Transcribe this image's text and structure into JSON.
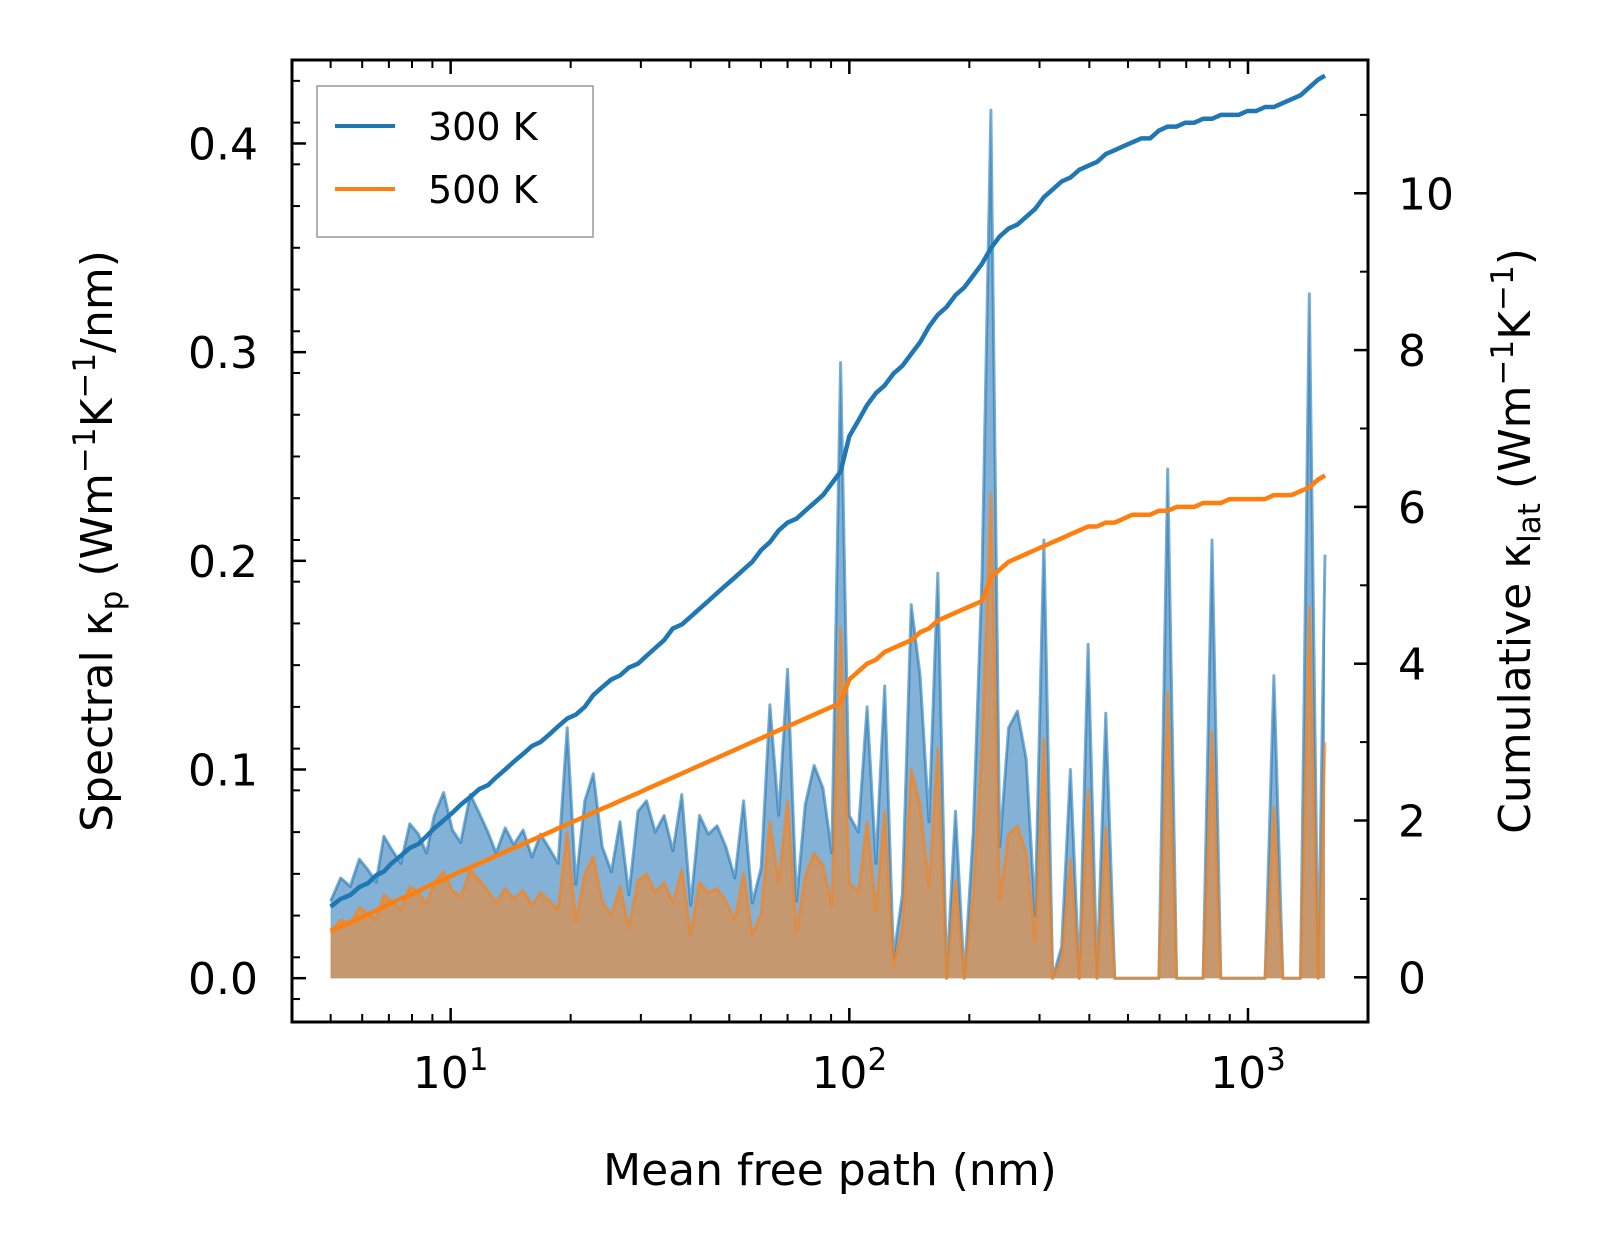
{
  "chart_data": {
    "type": "line",
    "x_scale": "log",
    "xlim": [
      4,
      2000
    ],
    "xlabel": "Mean free path (nm)",
    "x_ticks": [
      {
        "value": 10,
        "base": "10",
        "exp": "1"
      },
      {
        "value": 100,
        "base": "10",
        "exp": "2"
      },
      {
        "value": 1000,
        "base": "10",
        "exp": "3"
      }
    ],
    "y_left": {
      "label_prefix": "Spectral κ",
      "label_sub": "p",
      "label_unit_open": " (Wm",
      "label_sup1": "−1",
      "label_mid": "K",
      "label_sup2": "−1",
      "label_end": "/nm)",
      "ylim": [
        -0.021,
        0.44
      ],
      "ticks": [
        "0.0",
        "0.1",
        "0.2",
        "0.3",
        "0.4"
      ]
    },
    "y_right": {
      "label_prefix": "Cumulative κ",
      "label_sub": "lat",
      "label_unit_open": " (Wm",
      "label_sup1": "−1",
      "label_mid": "K",
      "label_sup2": "−1",
      "label_end": ")",
      "ylim": [
        -0.57,
        11.7
      ],
      "ticks": [
        "0",
        "2",
        "4",
        "6",
        "8",
        "10"
      ]
    },
    "legend": {
      "position": "upper-left",
      "entries": [
        "300 K",
        "500 K"
      ]
    },
    "colors": {
      "300 K": "#1f77b4",
      "500 K": "#ff7f0e",
      "fill_300": "#6fa4cf",
      "fill_500": "#c8976a"
    },
    "spectral_x": [
      5,
      5.3,
      5.6,
      5.9,
      6.2,
      6.5,
      6.8,
      7.1,
      7.5,
      7.9,
      8.3,
      8.7,
      9.1,
      9.6,
      10.1,
      10.6,
      11.2,
      11.8,
      12.4,
      13,
      13.7,
      14.4,
      15.2,
      16,
      16.8,
      17.7,
      18.6,
      19.6,
      20.6,
      21.7,
      22.8,
      24,
      25.3,
      26.6,
      28,
      29.5,
      31,
      32.6,
      34.3,
      36.1,
      38,
      40,
      42.1,
      44.3,
      46.6,
      49,
      51.6,
      54.3,
      57.1,
      60.1,
      63.2,
      66.5,
      70,
      73.7,
      77.5,
      81.6,
      85.9,
      90.4,
      95.1,
      100,
      105.3,
      110.8,
      116.6,
      122.7,
      129.1,
      135.9,
      143,
      150.5,
      158.4,
      166.7,
      175.4,
      184.6,
      194.3,
      204.5,
      215.2,
      226.5,
      238.4,
      250.9,
      264,
      277.8,
      292.4,
      307.7,
      323.8,
      340.8,
      358.6,
      377.4,
      397.2,
      418,
      440,
      463,
      487.3,
      512.8,
      539.7,
      568,
      597.8,
      629.1,
      662.1,
      696.8,
      733.3,
      771.8,
      812.2,
      854.8,
      899.6,
      946.8,
      996.4,
      1048.7,
      1103.7,
      1161.6,
      1222.5,
      1286.6,
      1354.1,
      1425.1,
      1499.8,
      1560
    ],
    "series": [
      {
        "name": "300 K",
        "spectral": [
          0.037,
          0.048,
          0.044,
          0.057,
          0.052,
          0.046,
          0.068,
          0.062,
          0.055,
          0.074,
          0.069,
          0.06,
          0.078,
          0.089,
          0.071,
          0.065,
          0.088,
          0.079,
          0.07,
          0.06,
          0.072,
          0.064,
          0.071,
          0.058,
          0.069,
          0.062,
          0.055,
          0.12,
          0.045,
          0.085,
          0.098,
          0.063,
          0.051,
          0.075,
          0.04,
          0.08,
          0.085,
          0.07,
          0.078,
          0.061,
          0.088,
          0.035,
          0.078,
          0.069,
          0.073,
          0.063,
          0.048,
          0.085,
          0.036,
          0.053,
          0.131,
          0.078,
          0.148,
          0.037,
          0.083,
          0.102,
          0.091,
          0.06,
          0.295,
          0.078,
          0.07,
          0.13,
          0.055,
          0.14,
          0.01,
          0.04,
          0.179,
          0.145,
          0.075,
          0.194,
          0.0,
          0.08,
          0.0,
          0.07,
          0.193,
          0.416,
          0.063,
          0.12,
          0.128,
          0.105,
          0.03,
          0.21,
          0.0,
          0.015,
          0.1,
          0.0,
          0.16,
          0.0,
          0.127,
          0.0,
          0.0,
          0.0,
          0.0,
          0.0,
          0.0,
          0.244,
          0.0,
          0.0,
          0.0,
          0.0,
          0.21,
          0.0,
          0.0,
          0.0,
          0.0,
          0.0,
          0.0,
          0.145,
          0.0,
          0.0,
          0.0,
          0.328,
          0.0,
          0.203
        ],
        "cumulative": [
          0.9,
          1.0,
          1.05,
          1.15,
          1.2,
          1.3,
          1.35,
          1.45,
          1.55,
          1.65,
          1.7,
          1.8,
          1.9,
          2.0,
          2.1,
          2.2,
          2.3,
          2.4,
          2.45,
          2.55,
          2.65,
          2.75,
          2.85,
          2.95,
          3.0,
          3.1,
          3.2,
          3.3,
          3.35,
          3.45,
          3.6,
          3.7,
          3.8,
          3.85,
          3.95,
          4.0,
          4.1,
          4.2,
          4.3,
          4.45,
          4.5,
          4.6,
          4.7,
          4.8,
          4.9,
          5.0,
          5.1,
          5.2,
          5.3,
          5.45,
          5.55,
          5.7,
          5.8,
          5.85,
          5.95,
          6.05,
          6.15,
          6.3,
          6.45,
          6.9,
          7.1,
          7.3,
          7.45,
          7.55,
          7.7,
          7.8,
          7.95,
          8.1,
          8.3,
          8.45,
          8.55,
          8.7,
          8.8,
          8.95,
          9.1,
          9.3,
          9.45,
          9.55,
          9.6,
          9.7,
          9.8,
          9.95,
          10.05,
          10.15,
          10.2,
          10.3,
          10.35,
          10.4,
          10.5,
          10.55,
          10.6,
          10.65,
          10.7,
          10.7,
          10.8,
          10.85,
          10.85,
          10.9,
          10.9,
          10.95,
          10.95,
          11.0,
          11.0,
          11.0,
          11.05,
          11.05,
          11.1,
          11.1,
          11.15,
          11.2,
          11.25,
          11.35,
          11.45,
          11.5
        ]
      },
      {
        "name": "500 K",
        "spectral": [
          0.022,
          0.028,
          0.026,
          0.034,
          0.031,
          0.028,
          0.04,
          0.037,
          0.033,
          0.044,
          0.041,
          0.036,
          0.046,
          0.051,
          0.042,
          0.039,
          0.052,
          0.047,
          0.042,
          0.036,
          0.043,
          0.038,
          0.042,
          0.035,
          0.041,
          0.037,
          0.033,
          0.07,
          0.027,
          0.05,
          0.058,
          0.037,
          0.03,
          0.044,
          0.024,
          0.047,
          0.05,
          0.041,
          0.046,
          0.036,
          0.052,
          0.021,
          0.046,
          0.041,
          0.043,
          0.037,
          0.028,
          0.05,
          0.021,
          0.031,
          0.075,
          0.046,
          0.085,
          0.022,
          0.049,
          0.06,
          0.054,
          0.035,
          0.168,
          0.046,
          0.041,
          0.075,
          0.032,
          0.08,
          0.006,
          0.024,
          0.1,
          0.083,
          0.044,
          0.11,
          0.0,
          0.047,
          0.0,
          0.041,
          0.11,
          0.232,
          0.037,
          0.069,
          0.073,
          0.06,
          0.018,
          0.115,
          0.0,
          0.009,
          0.057,
          0.0,
          0.09,
          0.0,
          0.072,
          0.0,
          0.0,
          0.0,
          0.0,
          0.0,
          0.0,
          0.137,
          0.0,
          0.0,
          0.0,
          0.0,
          0.118,
          0.0,
          0.0,
          0.0,
          0.0,
          0.0,
          0.0,
          0.082,
          0.0,
          0.0,
          0.0,
          0.178,
          0.0,
          0.113
        ],
        "cumulative": [
          0.6,
          0.65,
          0.7,
          0.75,
          0.8,
          0.85,
          0.9,
          0.95,
          1.0,
          1.05,
          1.1,
          1.15,
          1.2,
          1.25,
          1.3,
          1.35,
          1.4,
          1.45,
          1.5,
          1.55,
          1.6,
          1.65,
          1.7,
          1.75,
          1.8,
          1.85,
          1.9,
          1.95,
          2.0,
          2.05,
          2.1,
          2.15,
          2.2,
          2.25,
          2.3,
          2.35,
          2.4,
          2.45,
          2.5,
          2.55,
          2.6,
          2.65,
          2.7,
          2.75,
          2.8,
          2.85,
          2.9,
          2.95,
          3.0,
          3.05,
          3.1,
          3.15,
          3.2,
          3.25,
          3.3,
          3.35,
          3.4,
          3.45,
          3.5,
          3.8,
          3.9,
          4.0,
          4.05,
          4.15,
          4.2,
          4.25,
          4.3,
          4.4,
          4.45,
          4.55,
          4.6,
          4.65,
          4.7,
          4.75,
          4.8,
          5.1,
          5.2,
          5.3,
          5.35,
          5.4,
          5.45,
          5.5,
          5.55,
          5.6,
          5.65,
          5.7,
          5.75,
          5.75,
          5.8,
          5.8,
          5.85,
          5.9,
          5.9,
          5.9,
          5.95,
          5.95,
          6.0,
          6.0,
          6.0,
          6.05,
          6.05,
          6.05,
          6.1,
          6.1,
          6.1,
          6.1,
          6.1,
          6.15,
          6.15,
          6.15,
          6.2,
          6.25,
          6.35,
          6.4
        ]
      }
    ]
  }
}
